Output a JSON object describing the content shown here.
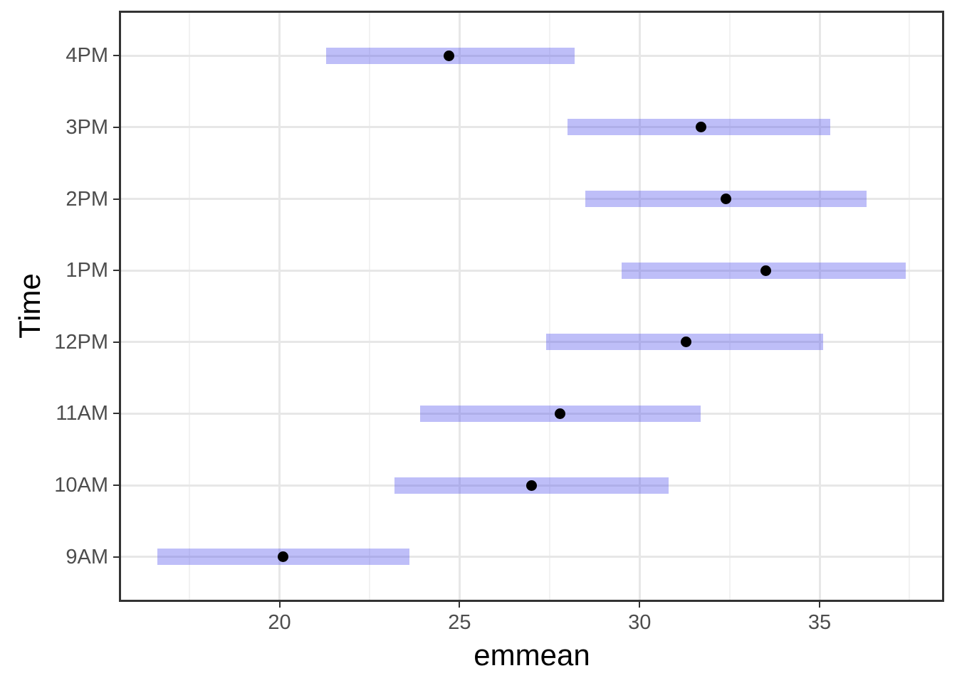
{
  "chart_data": {
    "type": "interval",
    "subtype": "estimated-marginal-means-with-confidence-intervals",
    "orientation": "horizontal",
    "title": "",
    "xlabel": "emmean",
    "ylabel": "Time",
    "categories_bottom_to_top": [
      "9AM",
      "10AM",
      "11AM",
      "12PM",
      "1PM",
      "2PM",
      "3PM",
      "4PM"
    ],
    "rows_top_to_bottom": [
      {
        "label": "4PM",
        "emmean": 24.7,
        "lower": 21.3,
        "upper": 28.2
      },
      {
        "label": "3PM",
        "emmean": 31.7,
        "lower": 28.0,
        "upper": 35.3
      },
      {
        "label": "2PM",
        "emmean": 32.4,
        "lower": 28.5,
        "upper": 36.3
      },
      {
        "label": "1PM",
        "emmean": 33.5,
        "lower": 29.5,
        "upper": 37.4
      },
      {
        "label": "12PM",
        "emmean": 31.3,
        "lower": 27.4,
        "upper": 35.1
      },
      {
        "label": "11AM",
        "emmean": 27.8,
        "lower": 23.9,
        "upper": 31.7
      },
      {
        "label": "10AM",
        "emmean": 27.0,
        "lower": 23.2,
        "upper": 30.8
      },
      {
        "label": "9AM",
        "emmean": 20.1,
        "lower": 16.6,
        "upper": 23.6
      }
    ],
    "x_major_ticks": [
      20,
      25,
      30,
      35
    ],
    "x_major_tick_labels": [
      "20",
      "25",
      "30",
      "35"
    ],
    "x_minor_gridlines": [
      17.5,
      22.5,
      27.5,
      32.5,
      37.5
    ],
    "xlim": [
      15.6,
      38.4
    ],
    "grid": "on",
    "legend": "none",
    "colors": {
      "interval_bar": "#5858ED",
      "interval_bar_alpha": 0.39,
      "point": "#000000",
      "grid_major": "#e7e7e7",
      "grid_minor": "#f2f2f2",
      "panel_border": "#333333",
      "tick_mark": "#333333",
      "axis_text": "#4d4d4d",
      "axis_title": "#000000",
      "background": "#ffffff"
    }
  }
}
